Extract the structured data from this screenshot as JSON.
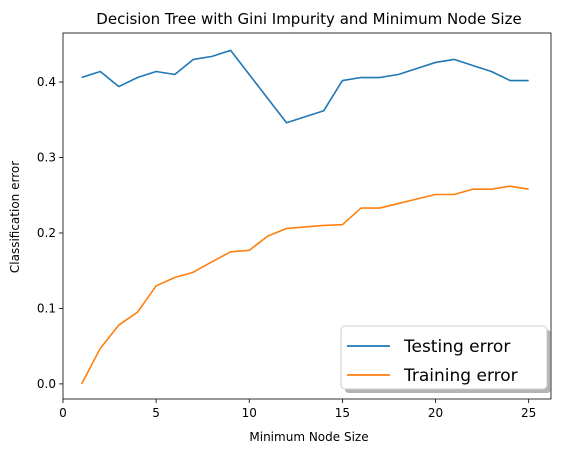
{
  "chart_data": {
    "type": "line",
    "title": "Decision Tree with Gini Impurity and Minimum Node Size",
    "xlabel": "Minimum Node Size",
    "ylabel": "Classification error",
    "xlim": [
      0,
      26.2
    ],
    "ylim": [
      -0.02,
      0.465
    ],
    "xticks": [
      0,
      5,
      10,
      15,
      20,
      25
    ],
    "yticks": [
      0.0,
      0.1,
      0.2,
      0.3,
      0.4
    ],
    "ytick_labels": [
      "0.0",
      "0.1",
      "0.2",
      "0.3",
      "0.4"
    ],
    "grid": false,
    "legend_position": "lower-right",
    "x": [
      1,
      2,
      3,
      4,
      5,
      6,
      7,
      8,
      9,
      10,
      11,
      12,
      13,
      14,
      15,
      16,
      17,
      18,
      19,
      20,
      21,
      22,
      23,
      24,
      25
    ],
    "series": [
      {
        "name": "Testing error",
        "color": "#1f77b4",
        "values": [
          0.406,
          0.414,
          0.394,
          0.406,
          0.414,
          0.41,
          0.43,
          0.434,
          0.442,
          0.41,
          0.378,
          0.346,
          0.354,
          0.362,
          0.402,
          0.406,
          0.406,
          0.41,
          0.418,
          0.426,
          0.43,
          0.422,
          0.414,
          0.402,
          0.402
        ]
      },
      {
        "name": "Training error",
        "color": "#ff7f0e",
        "values": [
          0.0,
          0.047,
          0.078,
          0.095,
          0.13,
          0.141,
          0.148,
          0.162,
          0.175,
          0.177,
          0.196,
          0.206,
          0.208,
          0.21,
          0.211,
          0.233,
          0.233,
          0.239,
          0.245,
          0.251,
          0.251,
          0.258,
          0.258,
          0.262,
          0.258
        ]
      }
    ]
  }
}
